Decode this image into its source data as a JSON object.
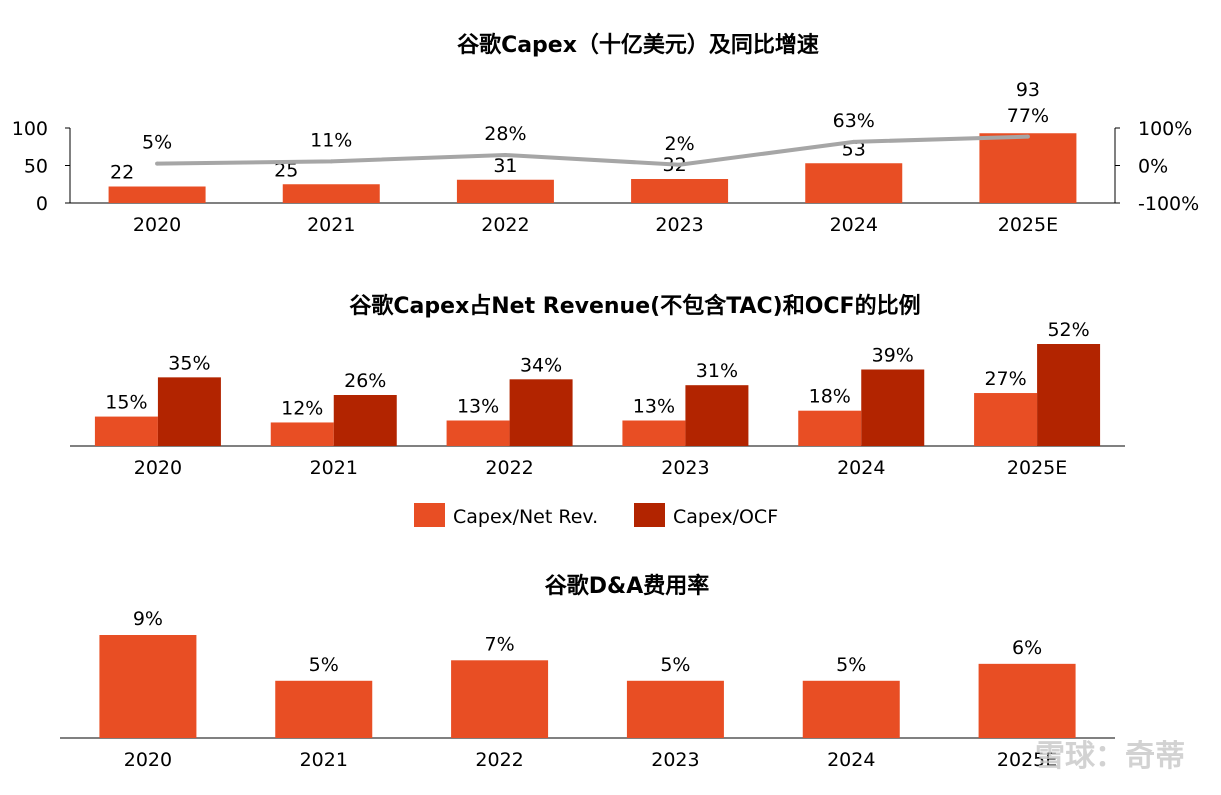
{
  "watermark": "雪球：奇蒂",
  "colors": {
    "orange": "#e84e24",
    "darkred": "#b22400",
    "line": "#a6a6a6",
    "axis": "#000000"
  },
  "chart_data": [
    {
      "type": "bar+line",
      "title": "谷歌Capex（十亿美元）及同比增速",
      "categories": [
        "2020",
        "2021",
        "2022",
        "2023",
        "2024",
        "2025E"
      ],
      "series": [
        {
          "values": [
            22,
            25,
            31,
            32,
            53,
            93
          ],
          "labels": [
            "22",
            "25",
            "31",
            "32",
            "53",
            "93"
          ],
          "type": "bar",
          "axis": "left"
        },
        {
          "values": [
            5,
            11,
            28,
            2,
            63,
            77
          ],
          "labels": [
            "5%",
            "11%",
            "28%",
            "2%",
            "63%",
            "77%"
          ],
          "type": "line",
          "axis": "right"
        }
      ],
      "ylim_left": [
        0,
        100
      ],
      "yticks_left": [
        "100",
        "50",
        "0"
      ],
      "ylim_right": [
        -100,
        100
      ],
      "yticks_right": [
        "100%",
        "0%",
        "-100%"
      ]
    },
    {
      "type": "bar",
      "title": "谷歌Capex占Net Revenue(不包含TAC)和OCF的比例",
      "categories": [
        "2020",
        "2021",
        "2022",
        "2023",
        "2024",
        "2025E"
      ],
      "series": [
        {
          "name": "Capex/Net Rev.",
          "values": [
            15,
            12,
            13,
            13,
            18,
            27
          ],
          "labels": [
            "15%",
            "12%",
            "13%",
            "13%",
            "18%",
            "27%"
          ]
        },
        {
          "name": "Capex/OCF",
          "values": [
            35,
            26,
            34,
            31,
            39,
            52
          ],
          "labels": [
            "35%",
            "26%",
            "34%",
            "31%",
            "39%",
            "52%"
          ]
        }
      ],
      "legend": "bottom"
    },
    {
      "type": "bar",
      "title": "谷歌D&A费用率",
      "categories": [
        "2020",
        "2021",
        "2022",
        "2023",
        "2024",
        "2025E"
      ],
      "values": [
        9,
        5,
        7,
        5,
        5,
        6
      ],
      "labels": [
        "9%",
        "5%",
        "7%",
        "5%",
        "5%",
        "6%"
      ]
    }
  ]
}
